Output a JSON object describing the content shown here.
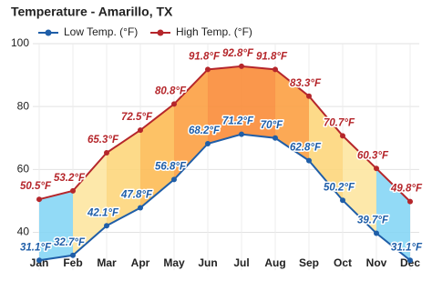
{
  "chart_data": {
    "type": "line",
    "title": "Temperature - Amarillo, TX",
    "categories": [
      "Jan",
      "Feb",
      "Mar",
      "Apr",
      "May",
      "Jun",
      "Jul",
      "Aug",
      "Sep",
      "Oct",
      "Nov",
      "Dec"
    ],
    "series": [
      {
        "name": "Low Temp. (°F)",
        "color": "#1f5ea8",
        "values": [
          31.1,
          32.7,
          42.1,
          47.8,
          56.8,
          68.2,
          71.2,
          70,
          62.8,
          50.2,
          39.7,
          31.1
        ],
        "value_labels": [
          "31.1°F",
          "32.7°F",
          "42.1°F",
          "47.8°F",
          "56.8°F",
          "68.2°F",
          "71.2°F",
          "70°F",
          "62.8°F",
          "50.2°F",
          "39.7°F",
          "31.1°F"
        ]
      },
      {
        "name": "High Temp. (°F)",
        "color": "#b5262b",
        "values": [
          50.5,
          53.2,
          65.3,
          72.5,
          80.8,
          91.8,
          92.8,
          91.8,
          83.3,
          70.7,
          60.3,
          49.8
        ],
        "value_labels": [
          "50.5°F",
          "53.2°F",
          "65.3°F",
          "72.5°F",
          "80.8°F",
          "91.8°F",
          "92.8°F",
          "91.8°F",
          "83.3°F",
          "70.7°F",
          "60.3°F",
          "49.8°F"
        ]
      }
    ],
    "band_colors": [
      "#86d6f5",
      "#fde6a1",
      "#fdd67c",
      "#fdbb55",
      "#fca043",
      "#f98c39",
      "#f98c39",
      "#fca043",
      "#fdd67c",
      "#fde6a1",
      "#86d6f5"
    ],
    "ylim": [
      28,
      100
    ],
    "yticks": [
      40,
      60,
      80,
      100
    ],
    "grid": true
  }
}
